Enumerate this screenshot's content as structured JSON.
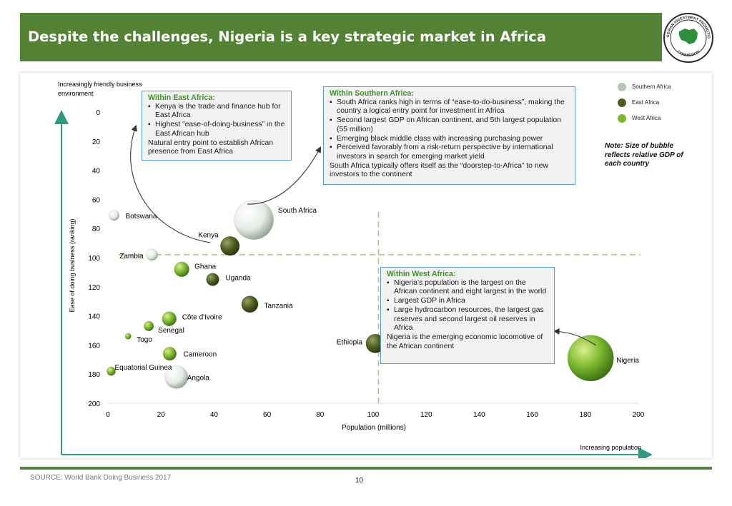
{
  "title": "Despite the challenges, Nigeria is a key strategic market in Africa",
  "logo": {
    "icon": "investment-commission-seal-icon",
    "text_top": "NIGERIAN INVESTMENT PROMOTION",
    "text_bottom": "COMMISSION"
  },
  "chart_data": {
    "type": "scatter",
    "title": "",
    "xlabel": "Population (millions)",
    "ylabel": "Ease of doing business (ranking)",
    "xlim": [
      0,
      200
    ],
    "ylim": [
      0,
      200
    ],
    "y_inverted": true,
    "x_ticks": [
      "0",
      "20",
      "40",
      "60",
      "80",
      "100",
      "120",
      "140",
      "160",
      "180",
      "200"
    ],
    "y_ticks": [
      "0",
      "20",
      "40",
      "60",
      "80",
      "100",
      "120",
      "140",
      "160",
      "180",
      "200"
    ],
    "top_left_label": "Increasingly friendly business environment",
    "bottom_right_label": "Increasing population",
    "reference_lines": {
      "x": 102,
      "y": 98
    },
    "bubble_size_meaning": "GDP",
    "series": [
      {
        "name": "Southern Africa",
        "color": "#c2ccc2",
        "points": [
          {
            "label": "Botswana",
            "x": 2.3,
            "y": 71,
            "gdp": 16
          },
          {
            "label": "Zambia",
            "x": 16.6,
            "y": 98,
            "gdp": 21
          },
          {
            "label": "South Africa",
            "x": 55,
            "y": 74,
            "gdp": 295
          },
          {
            "label": "Angola",
            "x": 25.8,
            "y": 182,
            "gdp": 96
          }
        ]
      },
      {
        "name": "East Africa",
        "color": "#4a5e26",
        "points": [
          {
            "label": "Kenya",
            "x": 46,
            "y": 92,
            "gdp": 64
          },
          {
            "label": "Uganda",
            "x": 39.5,
            "y": 115,
            "gdp": 26
          },
          {
            "label": "Tanzania",
            "x": 53.5,
            "y": 132,
            "gdp": 47
          },
          {
            "label": "Ethiopia",
            "x": 100.8,
            "y": 159,
            "gdp": 62
          }
        ]
      },
      {
        "name": "West Africa",
        "color": "#7ab72e",
        "points": [
          {
            "label": "Ghana",
            "x": 27.8,
            "y": 108,
            "gdp": 37
          },
          {
            "label": "Côte d'Ivoire",
            "x": 23.1,
            "y": 142,
            "gdp": 34
          },
          {
            "label": "Senegal",
            "x": 15.4,
            "y": 147,
            "gdp": 14
          },
          {
            "label": "Togo",
            "x": 7.6,
            "y": 154,
            "gdp": 4.4
          },
          {
            "label": "Cameroon",
            "x": 23.3,
            "y": 166,
            "gdp": 29
          },
          {
            "label": "Equatorial Guinea",
            "x": 1.2,
            "y": 178,
            "gdp": 11
          },
          {
            "label": "Nigeria",
            "x": 182,
            "y": 169,
            "gdp": 405
          }
        ]
      }
    ]
  },
  "legend": [
    {
      "label": "Southern Africa",
      "color": "#b8c4b8"
    },
    {
      "label": "East Africa",
      "color": "#4a5e26"
    },
    {
      "label": "West Africa",
      "color": "#7ab72e"
    }
  ],
  "note": "Note: Size of bubble reflects relative GDP of each country",
  "callouts": {
    "east": {
      "title": "Within East Africa:",
      "bullets": [
        "Kenya is the trade and finance hub for East Africa",
        "Highest “ease-of-doing-business” in the East African hub"
      ],
      "tail": "Natural entry point to establish African presence from East Africa"
    },
    "southern": {
      "title": "Within Southern Africa:",
      "bullets": [
        "South Africa ranks high in terms of “ease-to-do-business”, making the country a logical entry point for investment in Africa",
        "Second largest GDP on African continent, and 5th largest population (55 million)",
        "Emerging black middle class with increasing purchasing power",
        "Perceived favorably from a risk-return perspective by international investors in search for emerging market yield"
      ],
      "tail": "South Africa typically offers itself as the “doorstep-to-Africa” to new investors to the continent"
    },
    "west": {
      "title": "Within West Africa:",
      "bullets": [
        "Nigeria’s population is the largest on the African continent and eight largest in the world",
        "Largest GDP in Africa",
        "Large hydrocarbon resources, the largest gas reserves and second largest oil reserves in Africa"
      ],
      "tail": "Nigeria is the emerging economic locomotive of the African continent"
    }
  },
  "footer": {
    "source": "SOURCE: World Bank Doing Business 2017",
    "page": "10"
  }
}
